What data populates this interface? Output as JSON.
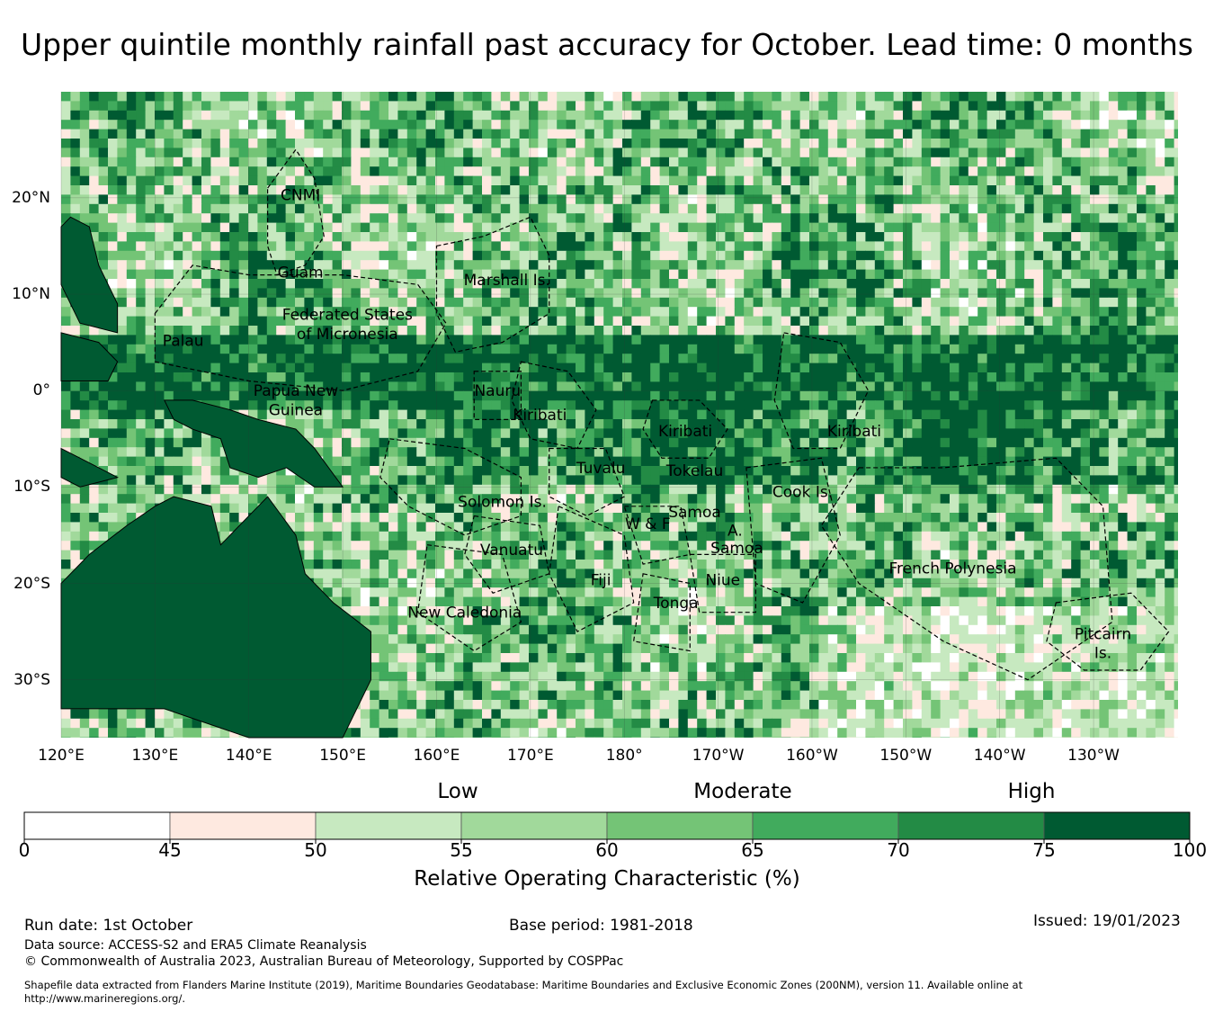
{
  "title": "Upper quintile monthly rainfall past accuracy for October. Lead time: 0 months",
  "map": {
    "lon_labels": [
      "120°E",
      "130°E",
      "140°E",
      "150°E",
      "160°E",
      "170°E",
      "180°",
      "170°W",
      "160°W",
      "150°W",
      "140°W",
      "130°W"
    ],
    "lat_labels": [
      "20°N",
      "10°N",
      "0°",
      "10°S",
      "20°S",
      "30°S"
    ],
    "lon_range": [
      120,
      239
    ],
    "lat_range": [
      -36,
      31
    ],
    "region_labels": [
      {
        "name": "CNMI",
        "lon": 145.5,
        "lat": 20.3
      },
      {
        "name": "Guam",
        "lon": 145.5,
        "lat": 12.3
      },
      {
        "name": "Marshall Is.",
        "lon": 167.5,
        "lat": 11.5
      },
      {
        "name": "Federated States",
        "lon": 150.5,
        "lat": 7.9
      },
      {
        "name": "of Micronesia",
        "lon": 150.5,
        "lat": 5.9
      },
      {
        "name": "Palau",
        "lon": 133.0,
        "lat": 5.2
      },
      {
        "name": "Papua New",
        "lon": 145.0,
        "lat": 0.0
      },
      {
        "name": "Guinea",
        "lon": 145.0,
        "lat": -2.0
      },
      {
        "name": "Nauru",
        "lon": 166.5,
        "lat": 0.0
      },
      {
        "name": "Kiribati",
        "lon": 171.0,
        "lat": -2.5
      },
      {
        "name": "Kiribati",
        "lon": 186.5,
        "lat": -4.2
      },
      {
        "name": "Kiribati",
        "lon": 204.5,
        "lat": -4.2
      },
      {
        "name": "Tuvalu",
        "lon": 177.5,
        "lat": -8.0
      },
      {
        "name": "Tokelau",
        "lon": 187.5,
        "lat": -8.3
      },
      {
        "name": "Solomon Is.",
        "lon": 167.0,
        "lat": -11.5
      },
      {
        "name": "Cook Is.",
        "lon": 199.0,
        "lat": -10.5
      },
      {
        "name": "W & F",
        "lon": 182.5,
        "lat": -13.8
      },
      {
        "name": "Samoa",
        "lon": 187.5,
        "lat": -12.6
      },
      {
        "name": "A.",
        "lon": 191.8,
        "lat": -14.5
      },
      {
        "name": "Samoa",
        "lon": 192.0,
        "lat": -16.3
      },
      {
        "name": "Vanuatu",
        "lon": 168.0,
        "lat": -16.5
      },
      {
        "name": "French Polynesia",
        "lon": 215.0,
        "lat": -18.4
      },
      {
        "name": "Fiji",
        "lon": 177.5,
        "lat": -19.6
      },
      {
        "name": "Niue",
        "lon": 190.5,
        "lat": -19.6
      },
      {
        "name": "Tonga",
        "lon": 185.5,
        "lat": -22.0
      },
      {
        "name": "New Caledonia",
        "lon": 163.0,
        "lat": -23.0
      },
      {
        "name": "Pitcairn",
        "lon": 231.0,
        "lat": -25.2
      },
      {
        "name": "Is.",
        "lon": 231.0,
        "lat": -27.2
      }
    ]
  },
  "legend": {
    "categories": [
      "Low",
      "Moderate",
      "High"
    ],
    "bins": [
      {
        "from": 0,
        "to": 45,
        "color": "#ffffff"
      },
      {
        "from": 45,
        "to": 50,
        "color": "#fee9e0"
      },
      {
        "from": 50,
        "to": 55,
        "color": "#c7e9c0"
      },
      {
        "from": 55,
        "to": 60,
        "color": "#a1d99b"
      },
      {
        "from": 60,
        "to": 65,
        "color": "#74c476"
      },
      {
        "from": 65,
        "to": 70,
        "color": "#41ab5d"
      },
      {
        "from": 70,
        "to": 75,
        "color": "#238b45"
      },
      {
        "from": 75,
        "to": 100,
        "color": "#005a32"
      }
    ],
    "ticks": [
      "0",
      "45",
      "50",
      "55",
      "60",
      "65",
      "70",
      "75",
      "100"
    ],
    "title": "Relative Operating Characteristic (%)"
  },
  "footer": {
    "run_date": "Run date: 1st October",
    "base_period": "Base period: 1981-2018",
    "issued": "Issued: 19/01/2023",
    "data_source": "Data source: ACCESS-S2 and ERA5 Climate Reanalysis",
    "copyright": "© Commonwealth of Australia 2023, Australian Bureau of Meteorology, Supported by COSPPac",
    "shapefile_note": "Shapefile data extracted from Flanders Marine Institute (2019), Maritime Boundaries Geodatabase: Maritime Boundaries and Exclusive Economic Zones (200NM), version 11. Available online at http://www.marineregions.org/."
  }
}
